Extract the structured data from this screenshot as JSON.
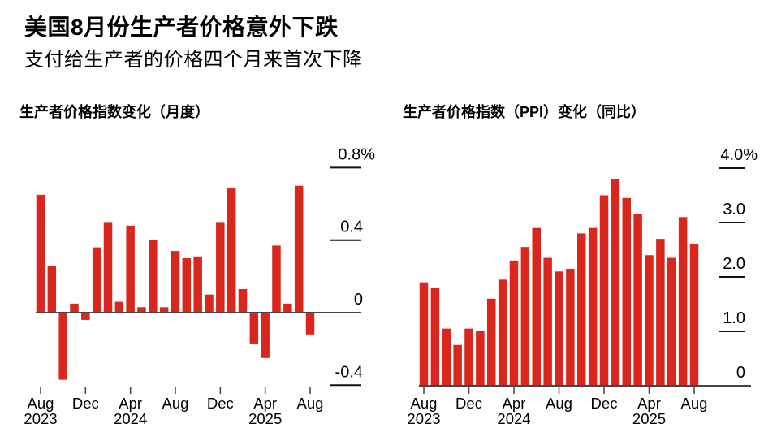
{
  "header": {
    "title": "美国8月份生产者价格意外下跌",
    "subtitle": "支付给生产者的价格四个月来首次下降"
  },
  "colors": {
    "bar": "#d9271e",
    "axis_line": "#454545",
    "tick_mark": "#4d4d4d",
    "grid_segment": "#111111",
    "text": "#000000",
    "background": "#ffffff"
  },
  "chart_data": [
    {
      "type": "bar",
      "title": "生产者价格指数变化（月度）",
      "unit": "%",
      "ylabel": "",
      "xlabel": "",
      "grid": false,
      "legend": null,
      "axis_side": "right",
      "ylim": [
        -0.5,
        0.95
      ],
      "x": [
        "Aug 2023",
        "Sep 2023",
        "Oct 2023",
        "Nov 2023",
        "Dec 2023",
        "Jan 2024",
        "Feb 2024",
        "Mar 2024",
        "Apr 2024",
        "May 2024",
        "Jun 2024",
        "Jul 2024",
        "Aug 2024",
        "Sep 2024",
        "Oct 2024",
        "Nov 2024",
        "Dec 2024",
        "Jan 2025",
        "Feb 2025",
        "Mar 2025",
        "Apr 2025",
        "May 2025",
        "Jun 2025",
        "Jul 2025",
        "Aug 2025"
      ],
      "values": [
        0.65,
        0.26,
        -0.37,
        0.05,
        -0.04,
        0.36,
        0.5,
        0.06,
        0.48,
        0.03,
        0.4,
        0.03,
        0.34,
        0.3,
        0.31,
        0.1,
        0.5,
        0.69,
        0.13,
        -0.17,
        -0.25,
        0.37,
        0.05,
        0.7,
        -0.12
      ],
      "yticks": [
        {
          "value": 0.8,
          "label": "0.8%"
        },
        {
          "value": 0.4,
          "label": "0.4"
        },
        {
          "value": 0,
          "label": "0"
        },
        {
          "value": -0.4,
          "label": "-0.4"
        }
      ],
      "xticks": [
        {
          "index": 0,
          "label": "Aug",
          "year": "2023"
        },
        {
          "index": 4,
          "label": "Dec",
          "year": ""
        },
        {
          "index": 8,
          "label": "Apr",
          "year": "2024"
        },
        {
          "index": 12,
          "label": "Aug",
          "year": ""
        },
        {
          "index": 16,
          "label": "Dec",
          "year": ""
        },
        {
          "index": 20,
          "label": "Apr",
          "year": "2025"
        },
        {
          "index": 24,
          "label": "Aug",
          "year": ""
        }
      ]
    },
    {
      "type": "bar",
      "title": "生产者价格指数（PPI）变化（同比）",
      "unit": "%",
      "ylabel": "",
      "xlabel": "",
      "grid": false,
      "legend": null,
      "axis_side": "right",
      "ylim": [
        0,
        4.0
      ],
      "x": [
        "Aug 2023",
        "Sep 2023",
        "Oct 2023",
        "Nov 2023",
        "Dec 2023",
        "Jan 2024",
        "Feb 2024",
        "Mar 2024",
        "Apr 2024",
        "May 2024",
        "Jun 2024",
        "Jul 2024",
        "Aug 2024",
        "Sep 2024",
        "Oct 2024",
        "Nov 2024",
        "Dec 2024",
        "Jan 2025",
        "Feb 2025",
        "Mar 2025",
        "Apr 2025",
        "May 2025",
        "Jun 2025",
        "Jul 2025",
        "Aug 2025"
      ],
      "values": [
        1.9,
        1.8,
        1.05,
        0.75,
        1.05,
        1.0,
        1.6,
        1.95,
        2.3,
        2.55,
        2.9,
        2.35,
        2.1,
        2.15,
        2.8,
        2.9,
        3.5,
        3.8,
        3.45,
        3.15,
        2.4,
        2.7,
        2.35,
        3.1,
        2.6
      ],
      "yticks": [
        {
          "value": 4.0,
          "label": "4.0%"
        },
        {
          "value": 3.0,
          "label": "3.0"
        },
        {
          "value": 2.0,
          "label": "2.0"
        },
        {
          "value": 1.0,
          "label": "1.0"
        },
        {
          "value": 0,
          "label": "0"
        }
      ],
      "xticks": [
        {
          "index": 0,
          "label": "Aug",
          "year": "2023"
        },
        {
          "index": 4,
          "label": "Dec",
          "year": ""
        },
        {
          "index": 8,
          "label": "Apr",
          "year": "2024"
        },
        {
          "index": 12,
          "label": "Aug",
          "year": ""
        },
        {
          "index": 16,
          "label": "Dec",
          "year": ""
        },
        {
          "index": 20,
          "label": "Apr",
          "year": "2025"
        },
        {
          "index": 24,
          "label": "Aug",
          "year": ""
        }
      ]
    }
  ]
}
